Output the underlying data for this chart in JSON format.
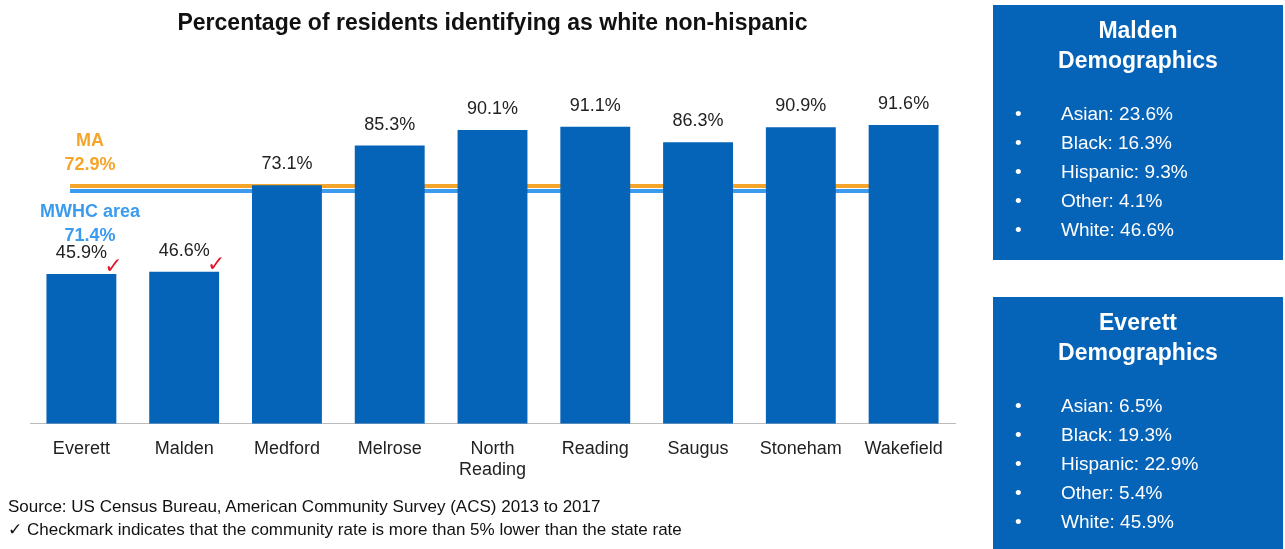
{
  "chart_data": [
    {
      "type": "bar",
      "title": "Percentage of residents identifying as white non-hispanic",
      "categories": [
        "Everett",
        "Malden",
        "Medford",
        "Melrose",
        "North Reading",
        "Reading",
        "Saugus",
        "Stoneham",
        "Wakefield"
      ],
      "values": [
        45.9,
        46.6,
        73.1,
        85.3,
        90.1,
        91.1,
        86.3,
        90.9,
        91.6
      ],
      "value_labels": [
        "45.9%",
        "46.6%",
        "73.1%",
        "85.3%",
        "90.1%",
        "91.1%",
        "86.3%",
        "90.9%",
        "91.6%"
      ],
      "color": "#0563b8",
      "ref_lines": [
        {
          "axis": "y",
          "value": 72.9,
          "label": "MA 72.9%",
          "color": "#f5a52a"
        },
        {
          "axis": "y",
          "value": 71.4,
          "label": "MWHC area 71.4%",
          "color": "#3a9bef"
        }
      ],
      "annotations": [
        {
          "text": "✓",
          "x": "Everett",
          "y": 45.9
        },
        {
          "text": "✓",
          "x": "Malden",
          "y": 46.6
        },
        "Source: US Census Bureau, American Community Survey (ACS) 2013 to 2017",
        "✓ Checkmark indicates that the community rate is more than 5% lower than the state rate"
      ],
      "grid": false,
      "legend": false,
      "tick_labels": "x"
    },
    {
      "type": "other",
      "title": "Malden Demographics",
      "annotations": [
        "• Asian: 23.6%",
        "• Black: 16.3%",
        "• Hispanic: 9.3%",
        "• Other: 4.1%",
        "• White: 46.6%"
      ]
    },
    {
      "type": "other",
      "title": "Everett Demographics",
      "annotations": [
        "• Asian: 6.5%",
        "• Black: 19.3%",
        "• Hispanic: 22.9%",
        "• Other: 5.4%",
        "• White: 45.9%"
      ]
    }
  ]
}
